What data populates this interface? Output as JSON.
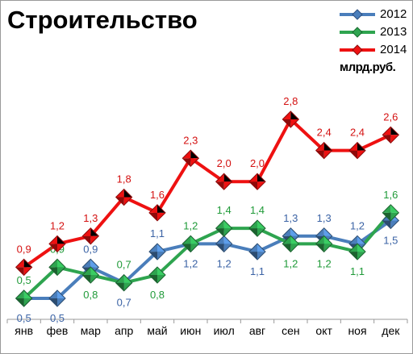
{
  "chart_data": {
    "type": "line",
    "title": "Строительство",
    "unit": "млрд.руб.",
    "categories": [
      "янв",
      "фев",
      "мар",
      "апр",
      "май",
      "июн",
      "июл",
      "авг",
      "сен",
      "окт",
      "ноя",
      "дек"
    ],
    "ylim": [
      0.4,
      3.2
    ],
    "grid": false,
    "legend": "top-right",
    "series": [
      {
        "name": "2012",
        "color": "#4a7ebb",
        "label_color": "#3b63a5",
        "values": [
          0.5,
          0.5,
          0.9,
          0.7,
          1.1,
          1.2,
          1.2,
          1.1,
          1.3,
          1.3,
          1.2,
          1.5
        ],
        "label_offsets": [
          "below",
          "below",
          "above",
          "below",
          "above",
          "below",
          "below",
          "below",
          "above",
          "above",
          "above",
          "below"
        ],
        "label_text": [
          "0,5",
          "0,5",
          "0,9",
          "0,7",
          "1,1",
          "1,2",
          "1,2",
          "1,1",
          "1,3",
          "1,3",
          "1,2",
          "1,5"
        ]
      },
      {
        "name": "2013",
        "color": "#2ea44f",
        "label_color": "#1f9a38",
        "values": [
          0.5,
          0.9,
          0.8,
          0.7,
          0.8,
          1.2,
          1.4,
          1.4,
          1.2,
          1.2,
          1.1,
          1.6
        ],
        "label_offsets": [
          "above",
          "above",
          "below",
          "above",
          "below",
          "above",
          "above",
          "above",
          "below",
          "below",
          "below",
          "above"
        ],
        "label_text": [
          "0,5",
          "0,9",
          "0,8",
          "0,7",
          "0,8",
          "1,2",
          "1,4",
          "1,4",
          "1,2",
          "1,2",
          "1,1",
          "1,6"
        ]
      },
      {
        "name": "2014",
        "color": "#ee1111",
        "label_color": "#d41111",
        "values": [
          0.9,
          1.2,
          1.3,
          1.8,
          1.6,
          2.3,
          2.0,
          2.0,
          2.8,
          2.4,
          2.4,
          2.6
        ],
        "label_offsets": [
          "above",
          "above",
          "above",
          "above",
          "above",
          "above",
          "above",
          "above",
          "above",
          "above",
          "above",
          "above"
        ],
        "label_text": [
          "0,9",
          "1,2",
          "1,3",
          "1,8",
          "1,6",
          "2,3",
          "2,0",
          "2,0",
          "2,8",
          "2,4",
          "2,4",
          "2,6"
        ]
      }
    ]
  }
}
